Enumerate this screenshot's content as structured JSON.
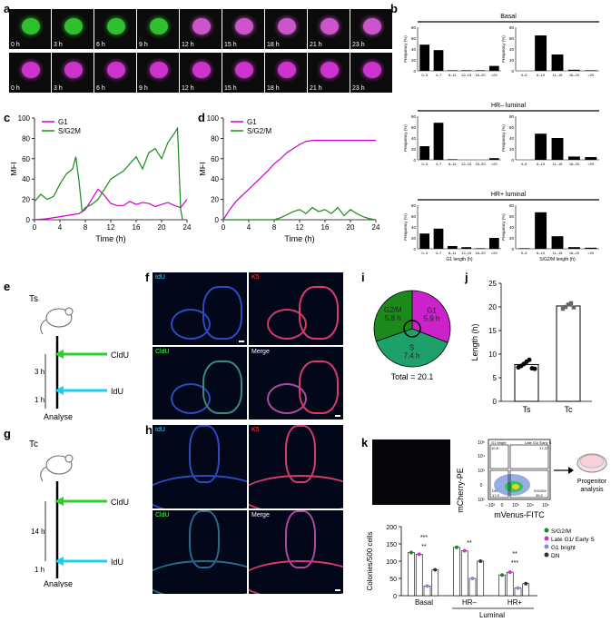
{
  "panel_labels": [
    "a",
    "b",
    "c",
    "d",
    "e",
    "f",
    "g",
    "h",
    "i",
    "j",
    "k"
  ],
  "panel_a": {
    "times": [
      "0 h",
      "3 h",
      "6 h",
      "9 h",
      "12 h",
      "15 h",
      "18 h",
      "21 h",
      "23 h"
    ]
  },
  "panel_b": {
    "ylabel": "Frequency (%)",
    "colors": {
      "bar": "#000000"
    },
    "groups": [
      {
        "title": "Basal",
        "g1": {
          "categories": [
            "0–3",
            "4–7",
            "8–11",
            "12–15",
            "16–20",
            ">20"
          ],
          "values": [
            48,
            38,
            1,
            1,
            1,
            9
          ]
        },
        "sg2m": {
          "categories": [
            "0–5",
            "6–10",
            "11–15",
            "16–20",
            ">20"
          ],
          "values": [
            0,
            65,
            30,
            2,
            1
          ]
        }
      },
      {
        "title": "HR– luminal",
        "g1": {
          "categories": [
            "0–3",
            "4–7",
            "8–11",
            "12–15",
            "16–20",
            ">20"
          ],
          "values": [
            25,
            68,
            1,
            0,
            0,
            3
          ]
        },
        "sg2m": {
          "categories": [
            "0–5",
            "6–10",
            "11–15",
            "16–20",
            ">20"
          ],
          "values": [
            0,
            48,
            40,
            6,
            5
          ]
        }
      },
      {
        "title": "HR+ luminal",
        "g1": {
          "categories": [
            "0–3",
            "4–7",
            "8–11",
            "12–15",
            "16–20",
            ">20"
          ],
          "values": [
            28,
            37,
            5,
            3,
            1,
            20
          ]
        },
        "sg2m": {
          "categories": [
            "0–5",
            "6–10",
            "11–15",
            "16–20",
            ">20"
          ],
          "values": [
            1,
            67,
            23,
            3,
            2
          ]
        }
      }
    ],
    "xlabel_g1": "G1 length (h)",
    "xlabel_sg2m": "S/G2/M length (h)",
    "ylim": [
      0,
      80
    ],
    "yticks": [
      "0",
      "20",
      "40",
      "60",
      "80"
    ]
  },
  "chart_data": [
    {
      "type": "line",
      "panel": "c",
      "xlabel": "Time (h)",
      "ylabel": "MFI",
      "xlim": [
        0,
        24
      ],
      "ylim": [
        0,
        100
      ],
      "xticks": [
        "0",
        "4",
        "8",
        "12",
        "16",
        "20",
        "24"
      ],
      "yticks": [
        "0",
        "20",
        "40",
        "60",
        "80",
        "100"
      ],
      "legend": "top-left",
      "series": [
        {
          "name": "G1",
          "color": "#cc00cc",
          "x": [
            0,
            2,
            4,
            6,
            7,
            8,
            9,
            10,
            11,
            12,
            13,
            14,
            15,
            16,
            17,
            18,
            19,
            20,
            21,
            22,
            23,
            24
          ],
          "y": [
            0,
            1,
            3,
            5,
            6,
            10,
            20,
            30,
            24,
            16,
            14,
            14,
            18,
            15,
            17,
            16,
            13,
            15,
            17,
            14,
            12,
            20
          ]
        },
        {
          "name": "S/G2M",
          "color": "#1b8a1b",
          "x": [
            0,
            1,
            2,
            3,
            4,
            5,
            6,
            6.5,
            7,
            7.5,
            8,
            9,
            10,
            11,
            12,
            13,
            14,
            15,
            16,
            17,
            18,
            19,
            20,
            21,
            22,
            22.5,
            23,
            23.3
          ],
          "y": [
            18,
            25,
            20,
            23,
            35,
            45,
            50,
            62,
            38,
            8,
            12,
            15,
            20,
            30,
            40,
            44,
            48,
            55,
            62,
            50,
            66,
            70,
            60,
            76,
            85,
            90,
            10,
            0
          ]
        }
      ]
    },
    {
      "type": "line",
      "panel": "d",
      "xlabel": "Time (h)",
      "ylabel": "MFI",
      "xlim": [
        0,
        24
      ],
      "ylim": [
        0,
        100
      ],
      "xticks": [
        "0",
        "4",
        "8",
        "12",
        "16",
        "20",
        "24"
      ],
      "yticks": [
        "0",
        "20",
        "40",
        "60",
        "80",
        "100"
      ],
      "legend": "top-left",
      "series": [
        {
          "name": "G1",
          "color": "#cc00cc",
          "x": [
            0,
            1,
            2,
            3,
            4,
            5,
            6,
            7,
            8,
            9,
            10,
            11,
            12,
            13,
            14,
            16,
            18,
            20,
            22,
            24
          ],
          "y": [
            0,
            10,
            18,
            24,
            30,
            36,
            42,
            48,
            55,
            60,
            66,
            70,
            74,
            77,
            78,
            78,
            78,
            78,
            78,
            78
          ]
        },
        {
          "name": "S/G2/M",
          "color": "#1b8a1b",
          "x": [
            0,
            4,
            8,
            9,
            10,
            11,
            12,
            13,
            14,
            15,
            16,
            17,
            18,
            19,
            20,
            21,
            22,
            23,
            24
          ],
          "y": [
            0,
            0,
            0,
            2,
            5,
            8,
            10,
            6,
            12,
            8,
            10,
            6,
            12,
            4,
            10,
            6,
            3,
            1,
            0
          ]
        }
      ]
    },
    {
      "type": "pie",
      "panel": "i",
      "total_label": "Total = 20.1",
      "slices": [
        {
          "name": "G1",
          "value": 5.9,
          "label": "G1\n5.9 h",
          "color": "#cc22cc"
        },
        {
          "name": "S",
          "value": 7.4,
          "label": "S\n7.4 h",
          "color": "#1ea06a"
        },
        {
          "name": "G2/M",
          "value": 5.8,
          "label": "G2/M\n5.8 h",
          "color": "#1b8a1b"
        }
      ]
    },
    {
      "type": "bar",
      "panel": "j",
      "ylabel": "Length (h)",
      "ylim": [
        0,
        25
      ],
      "yticks": [
        "0",
        "5",
        "10",
        "15",
        "20",
        "25"
      ],
      "categories": [
        "Ts",
        "Tc"
      ],
      "values": [
        7.8,
        20.2
      ],
      "points": [
        [
          7.2,
          7.5,
          7.9,
          8.4,
          8.8,
          7.0,
          6.9
        ],
        [
          19.6,
          20.0,
          20.5,
          20.8,
          19.9
        ]
      ]
    },
    {
      "type": "bar",
      "panel": "k",
      "ylabel": "Colonies/500 cells",
      "ylim": [
        0,
        200
      ],
      "yticks": [
        "0",
        "50",
        "100",
        "150",
        "200"
      ],
      "categories": [
        "Basal",
        "HR–",
        "HR+"
      ],
      "group_label": "Luminal",
      "series": [
        {
          "name": "S/G2/M",
          "color": "#1b8a1b",
          "values": [
            125,
            140,
            60
          ]
        },
        {
          "name": "Late G1/ Early S",
          "color": "#cc33cc",
          "values": [
            120,
            130,
            68
          ]
        },
        {
          "name": "G1 bright",
          "color": "#8888dd",
          "values": [
            28,
            50,
            22
          ]
        },
        {
          "name": "DN",
          "color": "#333333",
          "values": [
            75,
            100,
            35
          ]
        }
      ],
      "significance": [
        "**",
        "***",
        "**",
        "**",
        "***"
      ]
    }
  ],
  "panel_e": {
    "title": "Ts",
    "label_top": "CldU",
    "label_bottom": "IdU",
    "interval": "3 h",
    "wait": "1 h",
    "end": "Analyse"
  },
  "panel_g": {
    "title": "Tc",
    "label_top": "CldU",
    "label_bottom": "IdU",
    "interval": "14 h",
    "wait": "1 h",
    "end": "Analyse"
  },
  "panel_f": {
    "labels": [
      "IdU",
      "K5",
      "CldU",
      "Merge"
    ]
  },
  "panel_h": {
    "labels": [
      "IdU",
      "K5",
      "CldU",
      "Merge"
    ]
  },
  "panel_k_flow": {
    "ylabel": "mCherry-PE",
    "xlabel": "mVenus-FITC",
    "gates": [
      {
        "name": "G1 bright",
        "value": "10.8"
      },
      {
        "name": "Late G1/ Early S",
        "value": "17.37"
      },
      {
        "name": "DN",
        "value": "17.9"
      },
      {
        "name": "S/G2/M",
        "value": "39.2"
      }
    ],
    "xticks": [
      "−10³",
      "0",
      "10³",
      "10⁴",
      "10⁵"
    ],
    "yticks": [
      "10²",
      "0",
      "10³",
      "10⁴",
      "10⁵"
    ],
    "arrow_label": "Progenitor analysis"
  }
}
